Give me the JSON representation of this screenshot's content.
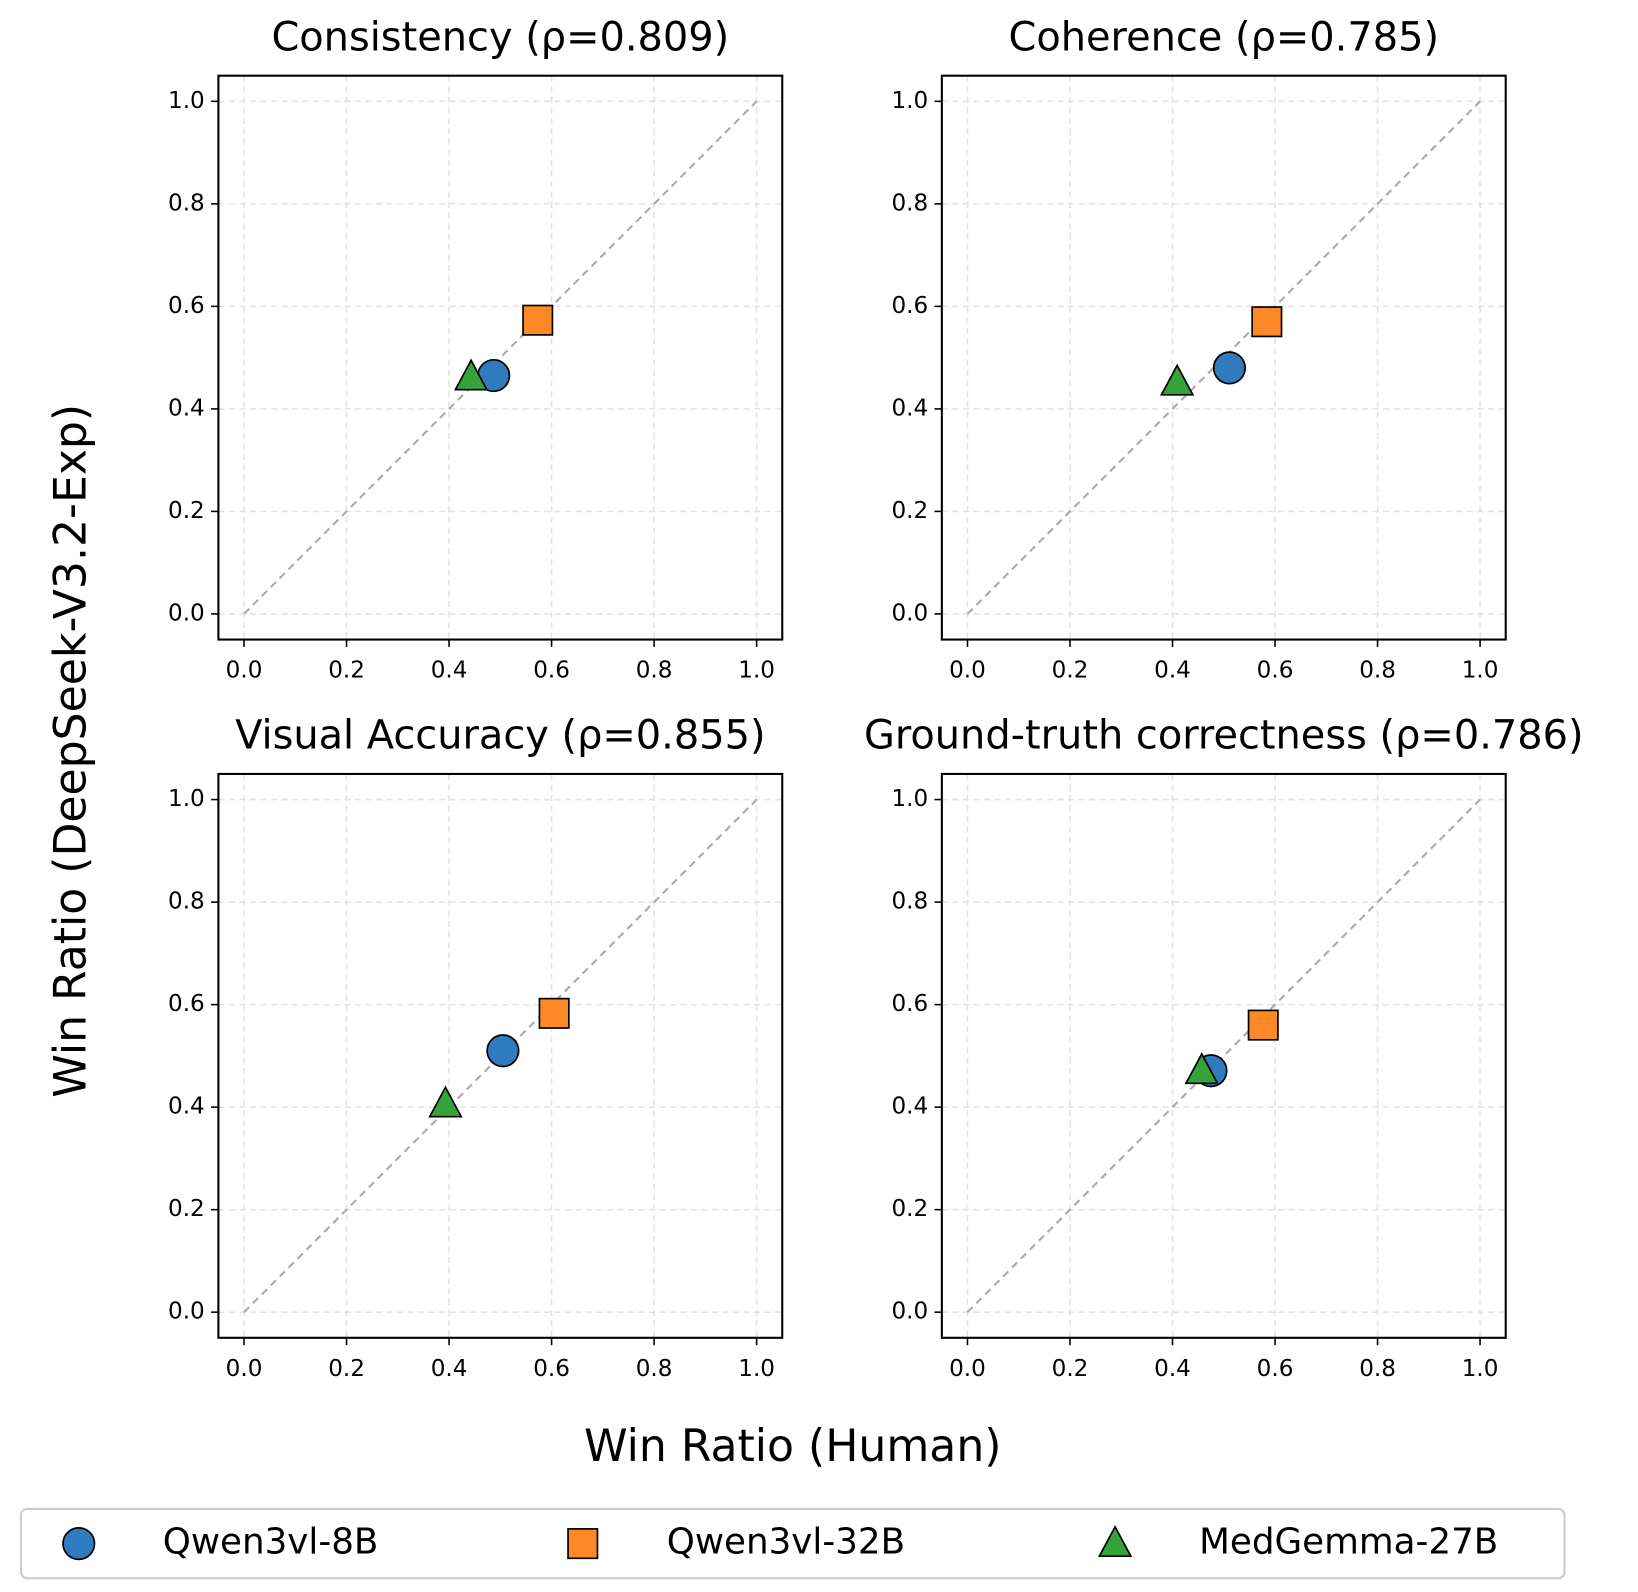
{
  "figure": {
    "xlabel": "Win Ratio (Human)",
    "ylabel": "Win Ratio (DeepSeek-V3.2-Exp)"
  },
  "chart_data": [
    {
      "type": "scatter",
      "title": "Consistency (ρ=0.809)",
      "grid": true,
      "xlim": [
        -0.05,
        1.05
      ],
      "ylim": [
        -0.05,
        1.05
      ],
      "xticks": [
        {
          "value": 0,
          "label": "0.0"
        },
        0.2,
        0.4,
        0.6,
        0.8,
        {
          "value": 1,
          "label": "1.0"
        }
      ],
      "yticks": [
        {
          "value": 0,
          "label": "0.0"
        },
        0.2,
        0.4,
        0.6,
        0.8,
        {
          "value": 1,
          "label": "1.0"
        }
      ],
      "series": [
        {
          "name": "Qwen3vl-8B",
          "color": "#2f7bbd",
          "marker": "circle",
          "x": [
            0.487
          ],
          "values": [
            0.465
          ]
        },
        {
          "name": "Qwen3vl-32B",
          "color": "#fd8826",
          "marker": "square",
          "x": [
            0.573
          ],
          "values": [
            0.573
          ]
        },
        {
          "name": "MedGemma-27B",
          "color": "#33a33a",
          "marker": "triangle",
          "x": [
            0.443
          ],
          "values": [
            0.462
          ]
        }
      ]
    },
    {
      "type": "scatter",
      "title": "Coherence (ρ=0.785)",
      "grid": true,
      "xlim": [
        -0.05,
        1.05
      ],
      "ylim": [
        -0.05,
        1.05
      ],
      "xticks": [
        {
          "value": 0,
          "label": "0.0"
        },
        0.2,
        0.4,
        0.6,
        0.8,
        {
          "value": 1,
          "label": "1.0"
        }
      ],
      "yticks": [
        {
          "value": 0,
          "label": "0.0"
        },
        0.2,
        0.4,
        0.6,
        0.8,
        {
          "value": 1,
          "label": "1.0"
        }
      ],
      "series": [
        {
          "name": "Qwen3vl-8B",
          "color": "#2f7bbd",
          "marker": "circle",
          "x": [
            0.511
          ],
          "values": [
            0.48
          ]
        },
        {
          "name": "Qwen3vl-32B",
          "color": "#fd8826",
          "marker": "square",
          "x": [
            0.584
          ],
          "values": [
            0.57
          ]
        },
        {
          "name": "MedGemma-27B",
          "color": "#33a33a",
          "marker": "triangle",
          "x": [
            0.409
          ],
          "values": [
            0.452
          ]
        }
      ]
    },
    {
      "type": "scatter",
      "title": "Visual Accuracy (ρ=0.855)",
      "grid": true,
      "xlim": [
        -0.05,
        1.05
      ],
      "ylim": [
        -0.05,
        1.05
      ],
      "xticks": [
        {
          "value": 0,
          "label": "0.0"
        },
        0.2,
        0.4,
        0.6,
        0.8,
        {
          "value": 1,
          "label": "1.0"
        }
      ],
      "yticks": [
        {
          "value": 0,
          "label": "0.0"
        },
        0.2,
        0.4,
        0.6,
        0.8,
        {
          "value": 1,
          "label": "1.0"
        }
      ],
      "series": [
        {
          "name": "Qwen3vl-8B",
          "color": "#2f7bbd",
          "marker": "circle",
          "x": [
            0.505
          ],
          "values": [
            0.51
          ]
        },
        {
          "name": "Qwen3vl-32B",
          "color": "#fd8826",
          "marker": "square",
          "x": [
            0.605
          ],
          "values": [
            0.583
          ]
        },
        {
          "name": "MedGemma-27B",
          "color": "#33a33a",
          "marker": "triangle",
          "x": [
            0.393
          ],
          "values": [
            0.406
          ]
        }
      ]
    },
    {
      "type": "scatter",
      "title": "Ground-truth correctness (ρ=0.786)",
      "grid": true,
      "xlim": [
        -0.05,
        1.05
      ],
      "ylim": [
        -0.05,
        1.05
      ],
      "xticks": [
        {
          "value": 0,
          "label": "0.0"
        },
        0.2,
        0.4,
        0.6,
        0.8,
        {
          "value": 1,
          "label": "1.0"
        }
      ],
      "yticks": [
        {
          "value": 0,
          "label": "0.0"
        },
        0.2,
        0.4,
        0.6,
        0.8,
        {
          "value": 1,
          "label": "1.0"
        }
      ],
      "series": [
        {
          "name": "Qwen3vl-8B",
          "color": "#2f7bbd",
          "marker": "circle",
          "x": [
            0.475
          ],
          "values": [
            0.471
          ]
        },
        {
          "name": "Qwen3vl-32B",
          "color": "#fd8826",
          "marker": "square",
          "x": [
            0.577
          ],
          "values": [
            0.56
          ]
        },
        {
          "name": "MedGemma-27B",
          "color": "#33a33a",
          "marker": "triangle",
          "x": [
            0.457
          ],
          "values": [
            0.471
          ]
        }
      ]
    }
  ]
}
